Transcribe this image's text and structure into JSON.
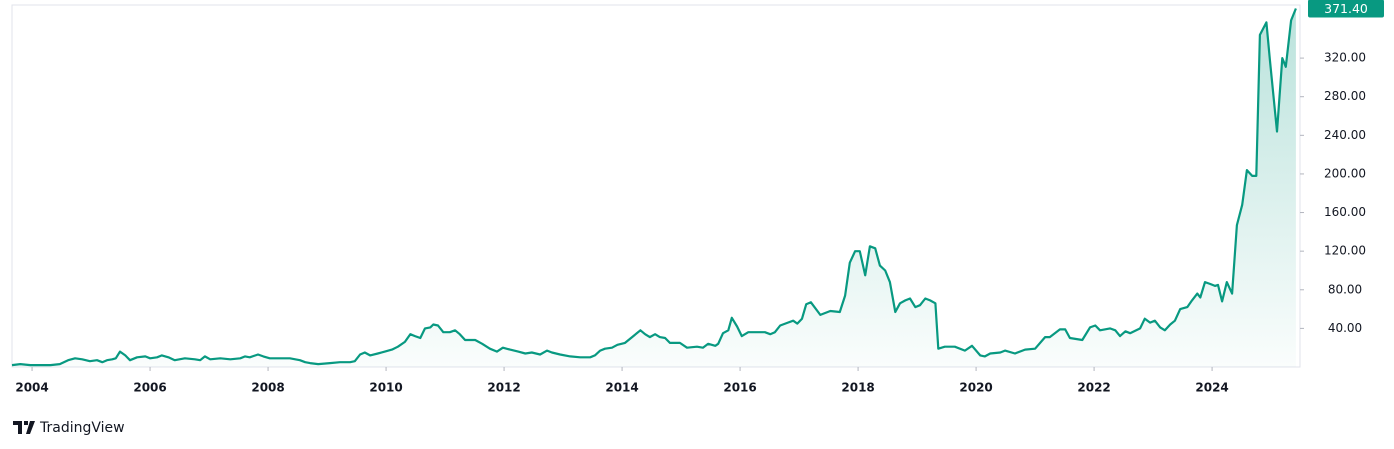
{
  "chart_data": {
    "type": "area",
    "color": "#089981",
    "watermark": "TradingView",
    "last_price": {
      "value": 371.4,
      "label": "371.40"
    },
    "xlim": [
      2003.66,
      2025.49
    ],
    "ylim": [
      0,
      375
    ],
    "xticks": [
      2004,
      2006,
      2008,
      2010,
      2012,
      2014,
      2016,
      2018,
      2020,
      2022,
      2024
    ],
    "yticks": [
      {
        "value": 40,
        "label": "40.00"
      },
      {
        "value": 80,
        "label": "80.00"
      },
      {
        "value": 120,
        "label": "120.00"
      },
      {
        "value": 160,
        "label": "160.00"
      },
      {
        "value": 200,
        "label": "200.00"
      },
      {
        "value": 240,
        "label": "240.00"
      },
      {
        "value": 280,
        "label": "280.00"
      },
      {
        "value": 320,
        "label": "320.00"
      }
    ],
    "x": [
      2003.66,
      2003.8,
      2003.97,
      2004.31,
      2004.47,
      2004.61,
      2004.73,
      2004.85,
      2004.98,
      2005.1,
      2005.19,
      2005.27,
      2005.36,
      2005.42,
      2005.49,
      2005.58,
      2005.66,
      2005.78,
      2005.92,
      2006.0,
      2006.12,
      2006.2,
      2006.31,
      2006.42,
      2006.59,
      2006.76,
      2006.85,
      2006.93,
      2007.02,
      2007.19,
      2007.36,
      2007.53,
      2007.61,
      2007.69,
      2007.83,
      2007.92,
      2008.03,
      2008.2,
      2008.37,
      2008.54,
      2008.63,
      2008.71,
      2008.85,
      2009.05,
      2009.22,
      2009.39,
      2009.47,
      2009.56,
      2009.64,
      2009.73,
      2009.86,
      2009.98,
      2010.1,
      2010.2,
      2010.32,
      2010.41,
      2010.49,
      2010.58,
      2010.66,
      2010.75,
      2010.8,
      2010.88,
      2010.97,
      2011.08,
      2011.17,
      2011.25,
      2011.34,
      2011.51,
      2011.63,
      2011.76,
      2011.88,
      2011.98,
      2012.1,
      2012.24,
      2012.36,
      2012.47,
      2012.61,
      2012.73,
      2012.81,
      2012.95,
      2013.12,
      2013.29,
      2013.46,
      2013.54,
      2013.63,
      2013.71,
      2013.83,
      2013.92,
      2014.05,
      2014.17,
      2014.31,
      2014.39,
      2014.47,
      2014.56,
      2014.64,
      2014.73,
      2014.81,
      2014.98,
      2015.1,
      2015.27,
      2015.37,
      2015.46,
      2015.58,
      2015.63,
      2015.71,
      2015.8,
      2015.86,
      2015.95,
      2016.03,
      2016.14,
      2016.25,
      2016.42,
      2016.51,
      2016.59,
      2016.68,
      2016.81,
      2016.9,
      2016.97,
      2017.05,
      2017.12,
      2017.2,
      2017.36,
      2017.53,
      2017.69,
      2017.78,
      2017.86,
      2017.95,
      2018.03,
      2018.12,
      2018.2,
      2018.29,
      2018.37,
      2018.46,
      2018.54,
      2018.63,
      2018.71,
      2018.8,
      2018.88,
      2018.97,
      2019.05,
      2019.14,
      2019.22,
      2019.31,
      2019.36,
      2019.47,
      2019.64,
      2019.81,
      2019.93,
      2020.07,
      2020.15,
      2020.24,
      2020.41,
      2020.49,
      2020.66,
      2020.83,
      2021.0,
      2021.17,
      2021.25,
      2021.42,
      2021.51,
      2021.59,
      2021.8,
      2021.93,
      2022.02,
      2022.1,
      2022.27,
      2022.36,
      2022.44,
      2022.53,
      2022.61,
      2022.78,
      2022.86,
      2022.95,
      2023.03,
      2023.12,
      2023.2,
      2023.29,
      2023.37,
      2023.46,
      2023.58,
      2023.66,
      2023.75,
      2023.8,
      2023.88,
      2023.97,
      2024.05,
      2024.1,
      2024.17,
      2024.25,
      2024.34,
      2024.42,
      2024.51,
      2024.59,
      2024.68,
      2024.75,
      2024.81,
      2024.92,
      2024.98,
      2025.1,
      2025.19,
      2025.25,
      2025.34,
      2025.42
    ],
    "values": [
      2,
      3,
      2,
      2,
      3,
      7,
      9,
      8,
      6,
      7,
      5,
      7,
      8,
      9,
      16,
      12,
      7,
      10,
      11,
      9,
      10,
      12,
      10,
      7,
      9,
      8,
      7,
      11,
      8,
      9,
      8,
      9,
      11,
      10,
      13,
      11,
      9,
      9,
      9,
      7,
      5,
      4,
      3,
      4,
      5,
      5,
      6,
      13,
      15,
      12,
      14,
      16,
      18,
      21,
      26,
      34,
      32,
      30,
      40,
      41,
      44,
      43,
      36,
      36,
      38,
      34,
      28,
      28,
      24,
      19,
      16,
      20,
      18,
      16,
      14,
      15,
      13,
      17,
      15,
      13,
      11,
      10,
      10,
      12,
      17,
      19,
      20,
      23,
      25,
      31,
      38,
      34,
      31,
      34,
      31,
      30,
      25,
      25,
      20,
      21,
      20,
      24,
      22,
      24,
      35,
      38,
      51,
      42,
      32,
      36,
      36,
      36,
      34,
      36,
      43,
      46,
      48,
      45,
      50,
      65,
      67,
      54,
      58,
      57,
      74,
      108,
      120,
      120,
      95,
      125,
      123,
      105,
      100,
      88,
      57,
      66,
      69,
      71,
      62,
      64,
      71,
      69,
      66,
      19,
      21,
      21,
      17,
      22,
      12,
      11,
      14,
      15,
      17,
      14,
      18,
      19,
      31,
      31,
      39,
      39,
      30,
      28,
      41,
      43,
      38,
      40,
      38,
      32,
      37,
      35,
      40,
      50,
      46,
      48,
      41,
      38,
      44,
      48,
      60,
      62,
      69,
      76,
      72,
      88,
      86,
      84,
      85,
      68,
      88,
      76,
      147,
      168,
      204,
      198,
      198,
      344,
      357,
      318,
      244,
      320,
      311,
      359,
      371.4
    ]
  }
}
